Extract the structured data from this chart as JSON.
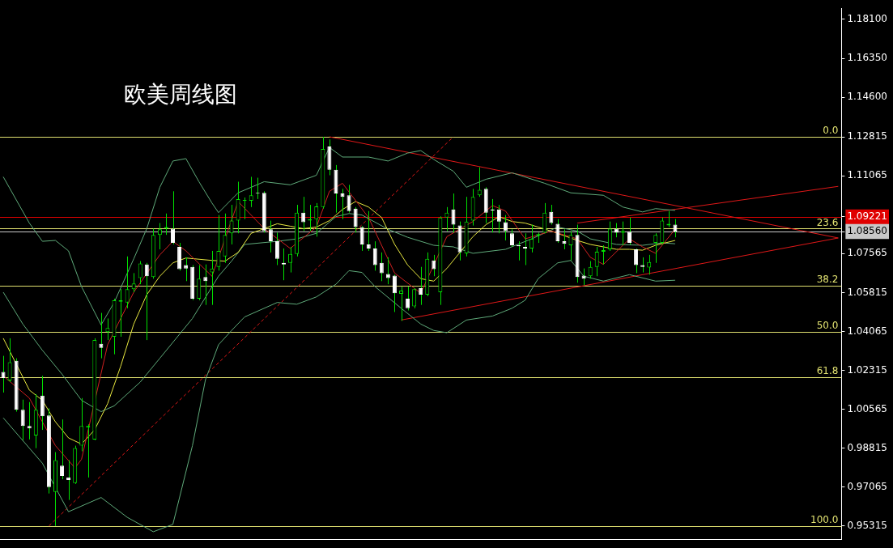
{
  "chart_data": {
    "type": "candlestick",
    "title": "欧美周线图",
    "marker": "none",
    "tick_labels": "y",
    "categories": [
      null,
      null,
      null,
      null,
      null,
      null,
      null,
      null,
      null,
      null,
      null,
      null,
      null,
      null,
      null,
      null,
      null,
      null,
      null,
      null,
      null,
      null,
      null,
      null,
      null,
      null,
      null,
      null,
      null,
      null,
      null,
      null,
      null,
      null,
      null,
      null,
      null,
      null,
      null,
      null,
      null,
      null,
      null,
      null,
      null,
      null,
      null,
      null,
      null,
      null,
      null,
      null,
      null,
      null,
      null,
      null,
      null,
      null,
      null,
      null,
      null,
      null,
      null,
      null,
      null,
      null,
      null,
      null,
      null,
      null,
      null,
      null,
      null,
      null,
      null,
      null,
      null,
      null,
      null,
      null,
      null,
      null,
      null,
      null,
      null,
      null,
      null,
      null,
      null,
      null,
      null,
      null,
      null,
      null,
      null,
      null,
      null,
      null,
      null,
      null,
      null,
      null,
      null,
      null,
      null,
      null,
      null,
      null,
      null,
      null,
      null,
      null,
      null,
      null,
      null,
      null,
      null,
      null,
      null,
      null,
      null,
      null,
      null,
      null,
      null,
      null,
      null,
      null,
      null
    ],
    "ohlc": [
      [
        1.0225,
        1.0297,
        1.0132,
        1.0197
      ],
      [
        1.0186,
        1.0376,
        1.0179,
        1.0268
      ],
      [
        1.0275,
        1.0286,
        1.0046,
        1.0054
      ],
      [
        1.0054,
        1.01,
        0.9918,
        0.9982
      ],
      [
        0.9982,
        1.0089,
        0.9921,
        0.9971
      ],
      [
        0.9939,
        1.0125,
        0.9882,
        1.0054
      ],
      [
        1.0118,
        1.0207,
        0.9964,
        1.0025
      ],
      [
        1.0029,
        1.0061,
        0.9678,
        0.9707
      ],
      [
        0.9685,
        0.9864,
        0.9532,
        0.9828
      ],
      [
        0.9803,
        1.0011,
        0.9742,
        0.9757
      ],
      [
        0.975,
        0.9828,
        0.9649,
        0.9739
      ],
      [
        0.9725,
        0.9893,
        0.9721,
        0.9882
      ],
      [
        0.9893,
        1.0107,
        0.9868,
        0.9982
      ],
      [
        0.9975,
        0.9989,
        0.975,
        0.9982
      ],
      [
        0.9921,
        1.0376,
        0.9918,
        1.0368
      ],
      [
        1.0351,
        1.049,
        1.0286,
        1.0333
      ],
      [
        1.0404,
        1.0465,
        1.0368,
        1.0422
      ],
      [
        1.0383,
        1.0554,
        1.0304,
        1.0547
      ],
      [
        1.054,
        1.0597,
        1.0383,
        1.0547
      ],
      [
        1.0537,
        1.0744,
        1.0511,
        1.0597
      ],
      [
        1.0597,
        1.0669,
        1.0583,
        1.0622
      ],
      [
        1.0647,
        1.0723,
        1.0619,
        1.0712
      ],
      [
        1.0708,
        1.0715,
        1.0368,
        1.0655
      ],
      [
        1.0651,
        1.0869,
        1.0644,
        1.0841
      ],
      [
        1.0841,
        1.0894,
        1.0776,
        1.0866
      ],
      [
        1.0869,
        1.0937,
        1.0841,
        1.0876
      ],
      [
        1.0869,
        1.1037,
        1.0798,
        1.0805
      ],
      [
        1.0787,
        1.0805,
        1.068,
        1.0687
      ],
      [
        1.0705,
        1.074,
        1.0633,
        1.069
      ],
      [
        1.0697,
        1.0705,
        1.0547,
        1.0554
      ],
      [
        1.0554,
        1.0705,
        1.0547,
        1.0644
      ],
      [
        1.0651,
        1.0708,
        1.0526,
        1.0633
      ],
      [
        1.0672,
        1.0769,
        1.0526,
        1.069
      ],
      [
        1.0697,
        1.093,
        1.068,
        1.0769
      ],
      [
        1.0744,
        1.0937,
        1.0715,
        1.0841
      ],
      [
        1.0848,
        1.0976,
        1.0798,
        1.0905
      ],
      [
        1.0905,
        1.108,
        1.0848,
        1.1002
      ],
      [
        1.0994,
        1.1009,
        1.0912,
        1.0998
      ],
      [
        1.0994,
        1.1102,
        1.0966,
        1.1019
      ],
      [
        1.103,
        1.1098,
        1.1002,
        1.1027
      ],
      [
        1.103,
        1.1037,
        1.0851,
        1.0858
      ],
      [
        1.0866,
        1.0905,
        1.0762,
        1.0812
      ],
      [
        1.0812,
        1.0851,
        1.0705,
        1.0733
      ],
      [
        1.0715,
        1.078,
        1.0637,
        1.0708
      ],
      [
        1.0715,
        1.0787,
        1.0672,
        1.0755
      ],
      [
        1.0755,
        1.0976,
        1.0744,
        1.0941
      ],
      [
        1.0941,
        1.1012,
        1.0858,
        1.0898
      ],
      [
        1.0905,
        1.0976,
        1.0858,
        1.0912
      ],
      [
        1.0912,
        1.0984,
        1.0833,
        1.0969
      ],
      [
        1.0966,
        1.1282,
        1.0959,
        1.1227
      ],
      [
        1.1238,
        1.127,
        1.1109,
        1.1134
      ],
      [
        1.1134,
        1.1155,
        1.0941,
        1.1027
      ],
      [
        1.1027,
        1.1048,
        1.0912,
        1.1012
      ],
      [
        1.1019,
        1.1066,
        1.0941,
        1.0948
      ],
      [
        1.0959,
        1.0966,
        1.0851,
        1.0876
      ],
      [
        1.0876,
        1.088,
        1.0769,
        1.0798
      ],
      [
        1.0798,
        1.0948,
        1.0769,
        1.078
      ],
      [
        1.078,
        1.0812,
        1.068,
        1.0705
      ],
      [
        1.0715,
        1.0762,
        1.0633,
        1.0669
      ],
      [
        1.0665,
        1.074,
        1.0619,
        1.0647
      ],
      [
        1.0658,
        1.0662,
        1.0494,
        1.0579
      ],
      [
        1.0576,
        1.0608,
        1.0454,
        1.059
      ],
      [
        1.0554,
        1.0608,
        1.0501,
        1.0511
      ],
      [
        1.0519,
        1.0601,
        1.0511,
        1.0597
      ],
      [
        1.0601,
        1.0697,
        1.0526,
        1.0572
      ],
      [
        1.0572,
        1.0762,
        1.0565,
        1.0733
      ],
      [
        1.0726,
        1.0751,
        1.0655,
        1.0687
      ],
      [
        1.0583,
        1.0924,
        1.0526,
        1.0919
      ],
      [
        1.0919,
        1.0966,
        1.0858,
        1.0941
      ],
      [
        1.0955,
        1.1027,
        1.0851,
        1.0887
      ],
      [
        1.0883,
        1.0901,
        1.0726,
        1.0762
      ],
      [
        1.0758,
        1.1012,
        1.0744,
        1.0901
      ],
      [
        1.0905,
        1.1048,
        1.0883,
        1.1012
      ],
      [
        1.1019,
        1.1145,
        1.1012,
        1.1044
      ],
      [
        1.1048,
        1.1055,
        1.0894,
        1.0941
      ],
      [
        1.0955,
        1.1002,
        1.0851,
        1.0951
      ],
      [
        1.0955,
        1.0976,
        1.0848,
        1.0901
      ],
      [
        1.0898,
        1.093,
        1.0816,
        1.0858
      ],
      [
        1.0848,
        1.0866,
        1.0787,
        1.0794
      ],
      [
        1.0794,
        1.0812,
        1.0726,
        1.079
      ],
      [
        1.0787,
        1.0848,
        1.0705,
        1.078
      ],
      [
        1.078,
        1.0887,
        1.0762,
        1.0823
      ],
      [
        1.0837,
        1.0851,
        1.0805,
        1.0844
      ],
      [
        1.0851,
        1.0984,
        1.0848,
        1.0941
      ],
      [
        1.0944,
        1.0976,
        1.0887,
        1.0894
      ],
      [
        1.0891,
        1.0912,
        1.0805,
        1.0812
      ],
      [
        1.0812,
        1.0866,
        1.0776,
        1.0801
      ],
      [
        1.0794,
        1.0858,
        1.0726,
        1.0841
      ],
      [
        1.0841,
        1.0887,
        1.0626,
        1.0651
      ],
      [
        1.0658,
        1.069,
        1.0615,
        1.0644
      ],
      [
        1.0655,
        1.0723,
        1.0644,
        1.0697
      ],
      [
        1.0697,
        1.0787,
        1.0655,
        1.0765
      ],
      [
        1.0765,
        1.0794,
        1.0708,
        1.0772
      ],
      [
        1.0776,
        1.0901,
        1.0769,
        1.0869
      ],
      [
        1.0869,
        1.0894,
        1.083,
        1.0851
      ],
      [
        1.0851,
        1.0901,
        1.0794,
        1.0858
      ],
      [
        1.0855,
        1.0919,
        1.0798,
        1.0805
      ],
      [
        1.0776,
        1.078,
        1.0669,
        1.0705
      ],
      [
        1.0705,
        1.074,
        1.0672,
        1.0697
      ],
      [
        1.0694,
        1.0751,
        1.0662,
        1.0719
      ],
      [
        1.0805,
        1.0848,
        1.0715,
        1.0841
      ],
      [
        1.0805,
        1.0919,
        1.0798,
        1.0905
      ],
      [
        1.0883,
        1.0948,
        1.0876,
        1.0891
      ],
      [
        1.0887,
        1.0912,
        1.083,
        1.0856
      ],
      null,
      null,
      null,
      null,
      null,
      null,
      null,
      null,
      null,
      null,
      null,
      null,
      null,
      null,
      null,
      null,
      null,
      null,
      null,
      null,
      null,
      null,
      null,
      null,
      null
    ],
    "series": [
      {
        "type": "line",
        "color": "#d02020",
        "values": [
          1.0207,
          null,
          null,
          null,
          1.0107,
          null,
          null,
          null,
          0.9893,
          null,
          null,
          0.9793,
          0.9832,
          null,
          null,
          null,
          1.0347,
          null,
          null,
          null,
          1.0583,
          null,
          null,
          null,
          1.0751,
          null,
          1.0812,
          null,
          1.0769,
          null,
          null,
          null,
          1.0655,
          null,
          null,
          null,
          1.0991,
          null,
          null,
          null,
          1.0869,
          null,
          null,
          null,
          1.078,
          null,
          null,
          null,
          1.0876,
          null,
          1.1037,
          null,
          1.1073,
          null,
          null,
          null,
          1.0919,
          null,
          null,
          null,
          1.0669,
          null,
          null,
          null,
          1.0579,
          null,
          null,
          null,
          1.0833,
          null,
          null,
          null,
          1.0901,
          null,
          null,
          1.0973,
          null,
          1.0948,
          null,
          null,
          1.0823,
          null,
          null,
          null,
          1.0858,
          null,
          null,
          null,
          1.0823,
          null,
          1.074,
          null,
          1.0708,
          null,
          null,
          null,
          1.0823,
          null,
          1.0787,
          null,
          1.0758,
          null,
          null,
          1.0866,
          null,
          null,
          null,
          null,
          null,
          null,
          null,
          null,
          null,
          null,
          null,
          null,
          null,
          null,
          null,
          null,
          null,
          null,
          null,
          null,
          null,
          null,
          null,
          null,
          null
        ]
      },
      {
        "type": "line",
        "color": "#e8e840",
        "values": [
          1.0376,
          null,
          null,
          null,
          1.0143,
          null,
          1.0097,
          null,
          1.0,
          null,
          0.9928,
          null,
          0.99,
          null,
          0.9964,
          null,
          1.0082,
          null,
          1.025,
          null,
          1.044,
          null,
          1.0572,
          null,
          1.0655,
          null,
          1.0715,
          null,
          1.0737,
          null,
          null,
          null,
          1.0726,
          null,
          1.0723,
          null,
          1.0762,
          null,
          1.0848,
          null,
          1.0869,
          null,
          1.0891,
          null,
          1.088,
          null,
          1.0869,
          null,
          1.0876,
          null,
          1.0905,
          null,
          1.0955,
          null,
          1.0991,
          null,
          1.0966,
          null,
          1.0919,
          null,
          1.0798,
          null,
          1.0705,
          null,
          1.0644,
          null,
          1.0633,
          null,
          1.069,
          null,
          1.0762,
          null,
          1.0833,
          null,
          1.0887,
          null,
          1.0923,
          null,
          1.0901,
          null,
          1.0894,
          null,
          1.0876,
          null,
          1.0858,
          null,
          null,
          null,
          1.0816,
          null,
          1.0798,
          null,
          1.0787,
          null,
          1.0776,
          null,
          1.0776,
          null,
          1.0772,
          null,
          1.0794,
          null,
          null,
          1.0816,
          null,
          null,
          null,
          null,
          null,
          null,
          null,
          null,
          null,
          null,
          null,
          null,
          null,
          null,
          null,
          null,
          null,
          null,
          null,
          null,
          null,
          null,
          null,
          null,
          null
        ]
      },
      {
        "type": "line",
        "color": "#5faa7a",
        "values": [
          1.1102,
          null,
          null,
          null,
          1.0894,
          null,
          1.0812,
          null,
          1.0816,
          null,
          1.0769,
          null,
          1.0608,
          null,
          null,
          1.0436,
          null,
          1.0537,
          null,
          null,
          1.0733,
          null,
          1.0869,
          null,
          1.1055,
          null,
          1.1173,
          null,
          1.1184,
          null,
          1.108,
          null,
          1.0984,
          1.0941,
          null,
          null,
          1.103,
          null,
          null,
          null,
          1.108,
          null,
          null,
          null,
          1.1066,
          null,
          null,
          null,
          1.1109,
          null,
          1.1234,
          null,
          1.1191,
          null,
          null,
          null,
          1.1191,
          null,
          null,
          1.1173,
          null,
          null,
          1.1209,
          null,
          1.122,
          null,
          1.118,
          null,
          null,
          1.1127,
          null,
          1.1055,
          null,
          null,
          1.1091,
          null,
          null,
          null,
          1.112,
          null,
          null,
          null,
          null,
          1.1073,
          null,
          null,
          null,
          1.103,
          null,
          null,
          null,
          null,
          1.1019,
          null,
          null,
          1.0966,
          null,
          null,
          1.0944,
          null,
          1.0959,
          null,
          null,
          1.0951,
          null,
          null,
          null,
          null,
          null,
          null,
          null,
          null,
          null,
          null,
          null,
          null,
          null,
          null,
          null,
          null,
          null,
          null,
          null,
          null,
          null,
          null,
          null,
          null,
          null
        ]
      },
      {
        "type": "line",
        "color": "#5faa7a",
        "values": [
          1.0583,
          null,
          null,
          1.044,
          null,
          null,
          1.0322,
          null,
          null,
          1.0215,
          null,
          null,
          1.0097,
          null,
          null,
          1.0046,
          null,
          1.0072,
          null,
          null,
          null,
          1.0179,
          null,
          null,
          1.0286,
          null,
          null,
          null,
          null,
          1.0465,
          null,
          null,
          null,
          1.0655,
          null,
          1.0723,
          null,
          1.0798,
          null,
          null,
          null,
          null,
          1.0812,
          null,
          null,
          1.0823,
          null,
          null,
          1.0848,
          null,
          null,
          1.0923,
          null,
          1.0937,
          null,
          1.093,
          null,
          null,
          null,
          1.0866,
          null,
          null,
          1.083,
          null,
          null,
          null,
          1.0794,
          null,
          null,
          1.0787,
          null,
          null,
          1.0758,
          null,
          null,
          null,
          null,
          1.0776,
          null,
          null,
          null,
          1.0823,
          null,
          null,
          null,
          1.0876,
          null,
          null,
          1.0858,
          null,
          1.0823,
          null,
          null,
          null,
          1.0798,
          null,
          null,
          null,
          1.0794,
          null,
          null,
          1.0805,
          null,
          1.0801,
          null,
          null,
          null,
          null,
          null,
          null,
          null,
          null,
          null,
          null,
          null,
          null,
          null,
          null,
          null,
          null,
          null,
          null,
          null,
          null,
          null,
          null,
          null,
          null,
          null
        ]
      },
      {
        "type": "line",
        "color": "#5faa7a",
        "values": [
          1.0018,
          null,
          null,
          null,
          null,
          null,
          0.9814,
          null,
          null,
          null,
          0.9596,
          null,
          null,
          null,
          null,
          0.966,
          null,
          null,
          null,
          0.9571,
          null,
          null,
          null,
          0.9506,
          null,
          null,
          0.9539,
          null,
          null,
          0.9893,
          null,
          1.019,
          null,
          1.0347,
          null,
          1.0411,
          null,
          1.0472,
          null,
          null,
          null,
          null,
          1.0537,
          null,
          null,
          1.0529,
          null,
          null,
          1.0562,
          null,
          null,
          1.0619,
          null,
          1.068,
          null,
          1.0672,
          null,
          1.0608,
          null,
          null,
          null,
          1.0511,
          null,
          null,
          1.044,
          null,
          1.0411,
          null,
          1.0401,
          null,
          null,
          1.0458,
          null,
          null,
          null,
          1.0476,
          null,
          null,
          1.0511,
          null,
          1.0547,
          null,
          1.0644,
          null,
          null,
          1.0715,
          null,
          1.0726,
          null,
          1.0655,
          null,
          null,
          1.0633,
          null,
          null,
          null,
          1.0662,
          null,
          null,
          null,
          1.0633,
          null,
          null,
          1.0637,
          null,
          null,
          null,
          null,
          null,
          null,
          null,
          null,
          null,
          null,
          null,
          null,
          null,
          null,
          null,
          null,
          null,
          null,
          null,
          null,
          null,
          null,
          null,
          null,
          null
        ]
      },
      {
        "type": "line",
        "color": "#e01818",
        "values": [
          null,
          null,
          null,
          null,
          null,
          null,
          null,
          null,
          null,
          null,
          null,
          null,
          null,
          null,
          null,
          null,
          null,
          null,
          null,
          null,
          null,
          null,
          null,
          null,
          null,
          null,
          null,
          null,
          null,
          null,
          null,
          null,
          null,
          null,
          null,
          null,
          null,
          null,
          null,
          null,
          null,
          null,
          null,
          null,
          null,
          null,
          null,
          null,
          null,
          null,
          1.1282,
          null,
          null,
          null,
          null,
          null,
          null,
          null,
          null,
          null,
          null,
          null,
          null,
          null,
          null,
          null,
          null,
          null,
          null,
          null,
          null,
          null,
          null,
          null,
          null,
          null,
          null,
          null,
          null,
          null,
          null,
          null,
          null,
          null,
          null,
          null,
          null,
          null,
          null,
          null,
          null,
          null,
          null,
          null,
          null,
          null,
          null,
          null,
          null,
          null,
          null,
          null,
          null,
          null,
          null,
          null,
          null,
          null,
          null,
          null,
          null,
          null,
          null,
          null,
          null,
          null,
          null,
          null,
          null,
          null,
          null,
          null,
          null,
          null,
          null,
          null,
          null,
          null,
          1.0827
        ]
      },
      {
        "type": "line",
        "color": "#e01818",
        "values": [
          null,
          null,
          null,
          null,
          null,
          null,
          null,
          null,
          null,
          null,
          null,
          null,
          null,
          null,
          null,
          null,
          null,
          null,
          null,
          null,
          null,
          null,
          null,
          null,
          null,
          null,
          null,
          null,
          null,
          null,
          null,
          null,
          null,
          null,
          null,
          null,
          null,
          null,
          null,
          null,
          null,
          null,
          null,
          null,
          null,
          null,
          null,
          null,
          null,
          null,
          null,
          null,
          null,
          null,
          null,
          null,
          null,
          null,
          null,
          null,
          null,
          1.0458,
          null,
          null,
          null,
          null,
          null,
          null,
          null,
          null,
          null,
          null,
          null,
          null,
          null,
          null,
          null,
          null,
          null,
          null,
          null,
          null,
          null,
          null,
          null,
          null,
          null,
          null,
          null,
          null,
          null,
          null,
          null,
          null,
          null,
          null,
          null,
          null,
          null,
          null,
          null,
          null,
          null,
          null,
          null,
          null,
          null,
          null,
          null,
          null,
          null,
          null,
          null,
          null,
          null,
          null,
          null,
          null,
          null,
          null,
          null,
          null,
          null,
          null,
          null,
          null,
          null,
          null,
          1.0827
        ]
      },
      {
        "type": "line",
        "color": "#e01818",
        "values": [
          null,
          null,
          null,
          null,
          null,
          null,
          null,
          null,
          null,
          null,
          null,
          null,
          null,
          null,
          null,
          null,
          null,
          null,
          null,
          null,
          null,
          null,
          null,
          null,
          null,
          null,
          null,
          null,
          null,
          null,
          null,
          null,
          null,
          null,
          null,
          null,
          null,
          null,
          null,
          null,
          null,
          null,
          null,
          null,
          null,
          null,
          null,
          null,
          null,
          null,
          null,
          null,
          null,
          null,
          null,
          null,
          null,
          null,
          null,
          null,
          null,
          null,
          null,
          null,
          null,
          null,
          null,
          null,
          null,
          null,
          null,
          null,
          null,
          null,
          null,
          null,
          null,
          null,
          null,
          null,
          null,
          null,
          null,
          null,
          null,
          null,
          null,
          null,
          1.0894,
          null,
          null,
          null,
          null,
          null,
          null,
          null,
          null,
          null,
          null,
          null,
          null,
          null,
          null,
          null,
          null,
          null,
          null,
          null,
          null,
          null,
          null,
          null,
          null,
          null,
          null,
          null,
          null,
          null,
          null,
          null,
          null,
          null,
          null,
          null,
          null,
          null,
          null,
          null,
          1.1059
        ]
      },
      {
        "type": "line",
        "color": "#e01818",
        "line_style": "dashed",
        "values": [
          null,
          null,
          null,
          null,
          null,
          null,
          null,
          0.9532,
          null,
          null,
          null,
          null,
          null,
          null,
          null,
          null,
          null,
          null,
          null,
          null,
          null,
          null,
          null,
          null,
          null,
          null,
          null,
          null,
          null,
          null,
          null,
          null,
          null,
          null,
          null,
          null,
          null,
          null,
          null,
          null,
          null,
          null,
          null,
          null,
          null,
          null,
          null,
          null,
          null,
          null,
          null,
          null,
          null,
          null,
          null,
          null,
          null,
          null,
          null,
          null,
          null,
          null,
          null,
          null,
          null,
          null,
          null,
          null,
          null,
          1.1282,
          null,
          null,
          null,
          null,
          null,
          null,
          null,
          null,
          null,
          null,
          null,
          null,
          null,
          null,
          null,
          null,
          null,
          null,
          null,
          null,
          null,
          null,
          null,
          null,
          null,
          null,
          null,
          null,
          null,
          null,
          null,
          null,
          null,
          null,
          null,
          null,
          null,
          null,
          null,
          null,
          null,
          null,
          null,
          null,
          null,
          null,
          null,
          null,
          null,
          null,
          null,
          null,
          null,
          null,
          null,
          null,
          null,
          null,
          null
        ]
      }
    ],
    "annotations": [
      {
        "text": "0.0",
        "y": 1.1282
      },
      {
        "text": "23.6",
        "y": 1.0869
      },
      {
        "text": "38.2",
        "y": 1.0613
      },
      {
        "text": "50.0",
        "y": 1.0406
      },
      {
        "text": "61.8",
        "y": 1.02
      },
      {
        "text": "100.0",
        "y": 0.9532
      }
    ],
    "ref_lines": [
      {
        "axis": "y",
        "value": 1.1282,
        "color": "#e0e070"
      },
      {
        "axis": "y",
        "value": 1.0869,
        "color": "#e0e070"
      },
      {
        "axis": "y",
        "value": 1.0613,
        "color": "#e0e070"
      },
      {
        "axis": "y",
        "value": 1.0406,
        "color": "#e0e070"
      },
      {
        "axis": "y",
        "value": 1.02,
        "color": "#e0e070"
      },
      {
        "axis": "y",
        "value": 0.9532,
        "color": "#e0e070"
      },
      {
        "axis": "y",
        "value": 1.09221,
        "color": "#e00000"
      },
      {
        "axis": "y",
        "value": 1.0856,
        "color": "#c8c8c8"
      }
    ],
    "ylim": [
      0.947,
      1.186
    ],
    "yticks": [
      {
        "value": 1.181,
        "label": "1.18100"
      },
      {
        "value": 1.1635,
        "label": "1.16350"
      },
      {
        "value": 1.146,
        "label": "1.14600"
      },
      {
        "value": 1.12815,
        "label": "1.12815"
      },
      {
        "value": 1.11065,
        "label": "1.11065"
      },
      {
        "value": 1.09221,
        "label": "1.09221"
      },
      {
        "value": 1.0856,
        "label": "1.08560"
      },
      {
        "value": 1.07565,
        "label": "1.07565"
      },
      {
        "value": 1.05815,
        "label": "1.05815"
      },
      {
        "value": 1.04065,
        "label": "1.04065"
      },
      {
        "value": 1.02315,
        "label": "1.02315"
      },
      {
        "value": 1.00565,
        "label": "1.00565"
      },
      {
        "value": 0.98815,
        "label": "0.98815"
      },
      {
        "value": 0.97065,
        "label": "0.97065"
      },
      {
        "value": 0.95315,
        "label": "0.95315"
      }
    ]
  }
}
